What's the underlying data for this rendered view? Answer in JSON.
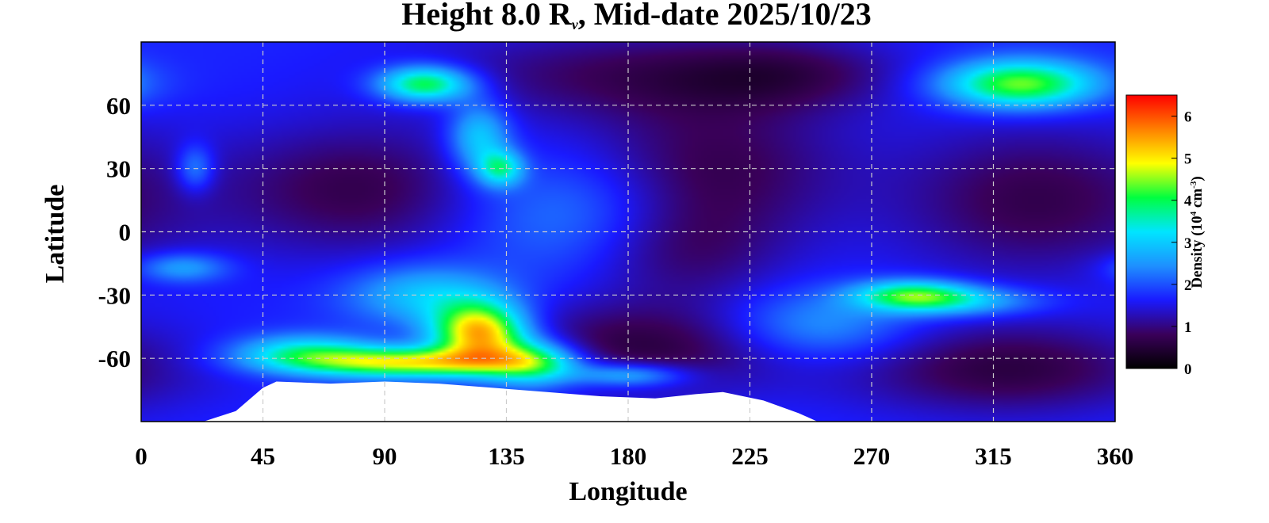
{
  "chart_data": {
    "type": "heatmap",
    "title_prefix": "Height 8.0 R",
    "title_sub": "v",
    "title_suffix": ", Mid-date 2025/10/23",
    "xlabel": "Longitude",
    "ylabel": "Latitude",
    "xlim": [
      0,
      360
    ],
    "ylim": [
      -90,
      90
    ],
    "xticks": [
      0,
      45,
      90,
      135,
      180,
      225,
      270,
      315,
      360
    ],
    "yticks": [
      60,
      30,
      0,
      -30,
      -60
    ],
    "grid": true,
    "colorbar": {
      "label_prefix": "Density (10",
      "label_exp1": "4",
      "label_mid": " cm",
      "label_exp2": "-3",
      "label_suffix": ")",
      "range": [
        0,
        6.5
      ],
      "ticks": [
        0,
        1,
        2,
        3,
        4,
        5,
        6
      ],
      "colormap": [
        "#000000",
        "#3a005a",
        "#1a1aff",
        "#1e90ff",
        "#00e5ff",
        "#00ff40",
        "#ffff00",
        "#ff8000",
        "#ff0000"
      ]
    },
    "blobs": [
      {
        "lon": 80,
        "lat": 20,
        "value": -1.0,
        "slon": 35,
        "slat": 22
      },
      {
        "lon": 210,
        "lat": 30,
        "value": -1.0,
        "slon": 35,
        "slat": 25
      },
      {
        "lon": 200,
        "lat": -10,
        "value": -0.7,
        "slon": 25,
        "slat": 18
      },
      {
        "lon": 330,
        "lat": 15,
        "value": -1.0,
        "slon": 35,
        "slat": 25
      },
      {
        "lon": 185,
        "lat": -55,
        "value": -1.1,
        "slon": 40,
        "slat": 15
      },
      {
        "lon": 320,
        "lat": -65,
        "value": -1.1,
        "slon": 40,
        "slat": 15
      },
      {
        "lon": 175,
        "lat": 75,
        "value": -0.8,
        "slon": 50,
        "slat": 15
      },
      {
        "lon": 240,
        "lat": 75,
        "value": -0.7,
        "slon": 30,
        "slat": 12
      },
      {
        "lon": 125,
        "lat": -48,
        "value": 3.8,
        "slon": 12,
        "slat": 10
      },
      {
        "lon": 100,
        "lat": -62,
        "value": 3.2,
        "slon": 30,
        "slat": 5
      },
      {
        "lon": 145,
        "lat": -62,
        "value": 2.2,
        "slon": 12,
        "slat": 8
      },
      {
        "lon": 180,
        "lat": -68,
        "value": 1.5,
        "slon": 15,
        "slat": 4
      },
      {
        "lon": 60,
        "lat": -57,
        "value": 1.6,
        "slon": 18,
        "slat": 6
      },
      {
        "lon": 105,
        "lat": -30,
        "value": 1.3,
        "slon": 20,
        "slat": 10
      },
      {
        "lon": 105,
        "lat": 70,
        "value": 2.6,
        "slon": 12,
        "slat": 6
      },
      {
        "lon": 125,
        "lat": 45,
        "value": 1.5,
        "slon": 8,
        "slat": 12
      },
      {
        "lon": 133,
        "lat": 30,
        "value": 1.8,
        "slon": 6,
        "slat": 6
      },
      {
        "lon": 325,
        "lat": 70,
        "value": 2.8,
        "slon": 20,
        "slat": 8
      },
      {
        "lon": 285,
        "lat": -30,
        "value": 2.2,
        "slon": 15,
        "slat": 5
      },
      {
        "lon": 305,
        "lat": -33,
        "value": 1.2,
        "slon": 20,
        "slat": 5
      },
      {
        "lon": 20,
        "lat": 30,
        "value": 1.0,
        "slon": 5,
        "slat": 8
      },
      {
        "lon": 15,
        "lat": -17,
        "value": 1.1,
        "slon": 12,
        "slat": 5
      },
      {
        "lon": 160,
        "lat": 10,
        "value": 0.8,
        "slon": 30,
        "slat": 20
      },
      {
        "lon": 250,
        "lat": -45,
        "value": 1.0,
        "slon": 25,
        "slat": 12
      }
    ],
    "baseline": 1.7,
    "masked_region": [
      [
        23,
        -90
      ],
      [
        35,
        -85
      ],
      [
        45,
        -74
      ],
      [
        50,
        -71
      ],
      [
        70,
        -72
      ],
      [
        90,
        -71
      ],
      [
        110,
        -72
      ],
      [
        130,
        -74
      ],
      [
        150,
        -76
      ],
      [
        170,
        -78
      ],
      [
        190,
        -79
      ],
      [
        205,
        -77
      ],
      [
        215,
        -76
      ],
      [
        230,
        -80
      ],
      [
        243,
        -86
      ],
      [
        250,
        -90
      ]
    ]
  }
}
